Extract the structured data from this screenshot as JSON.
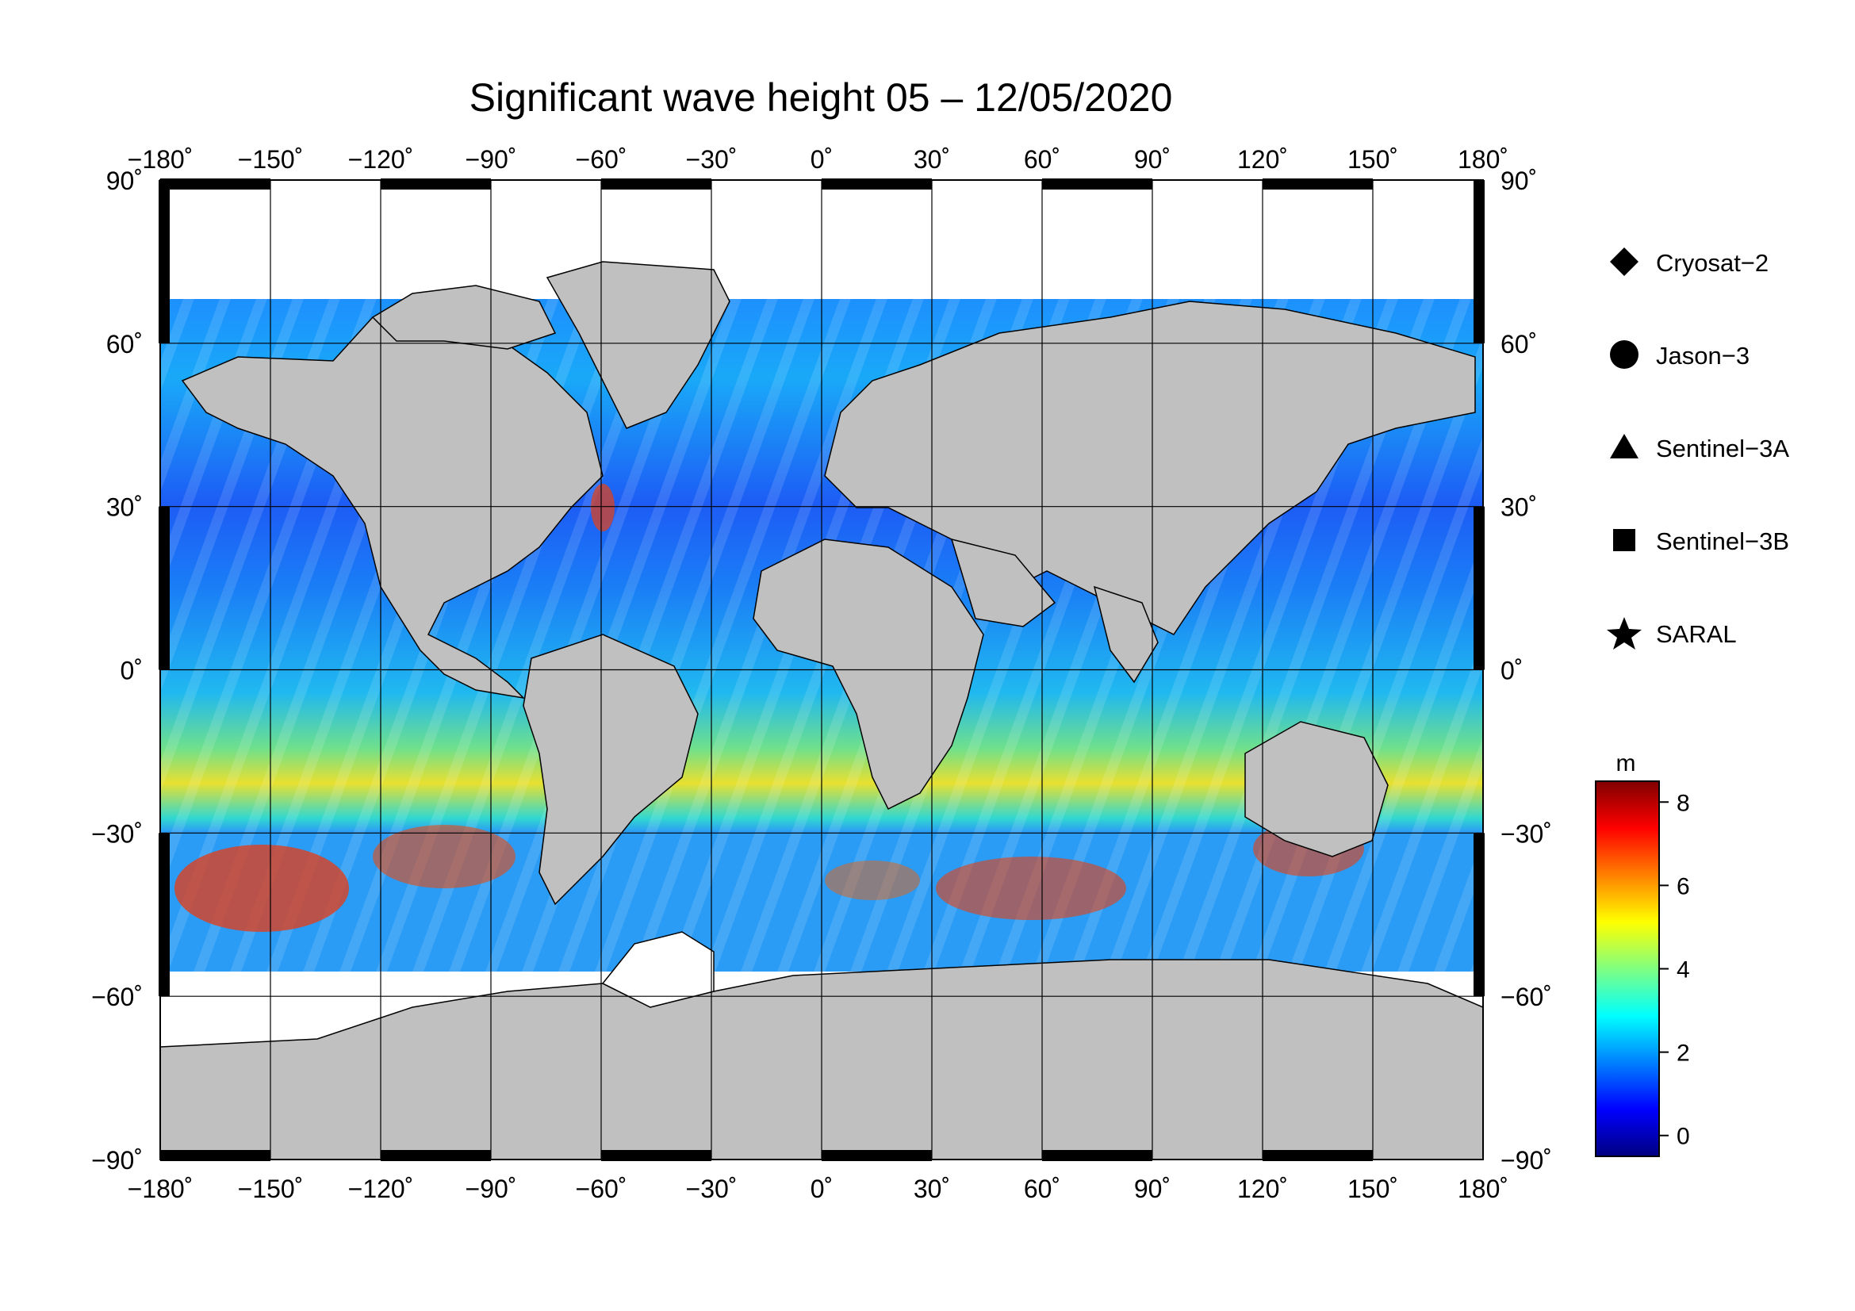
{
  "title": "Significant wave height 05 – 12/05/2020",
  "axes": {
    "lon_ticks": [
      "−180˚",
      "−150˚",
      "−120˚",
      "−90˚",
      "−60˚",
      "−30˚",
      "0˚",
      "30˚",
      "60˚",
      "90˚",
      "120˚",
      "150˚",
      "180˚"
    ],
    "lon_values": [
      -180,
      -150,
      -120,
      -90,
      -60,
      -30,
      0,
      30,
      60,
      90,
      120,
      150,
      180
    ],
    "lat_ticks": [
      "90˚",
      "60˚",
      "30˚",
      "0˚",
      "−30˚",
      "−60˚",
      "−90˚"
    ],
    "lat_values": [
      90,
      60,
      30,
      0,
      -30,
      -60,
      -90
    ],
    "lon_range": [
      -180,
      180
    ],
    "lat_range": [
      -90,
      90
    ],
    "grid": true
  },
  "legend": {
    "items": [
      {
        "label": "Cryosat−2",
        "symbol": "diamond"
      },
      {
        "label": "Jason−3",
        "symbol": "circle"
      },
      {
        "label": "Sentinel−3A",
        "symbol": "triangle"
      },
      {
        "label": "Sentinel−3B",
        "symbol": "square"
      },
      {
        "label": "SARAL",
        "symbol": "star"
      }
    ]
  },
  "colorbar": {
    "unit": "m",
    "tick_labels": [
      "8",
      "6",
      "4",
      "2",
      "0"
    ],
    "tick_values": [
      8,
      6,
      4,
      2,
      0
    ],
    "range": [
      -0.5,
      8.5
    ],
    "colors": [
      "#000080",
      "#0000ff",
      "#0080ff",
      "#00ffff",
      "#80ff80",
      "#ffff00",
      "#ff8000",
      "#ff0000",
      "#800000"
    ]
  },
  "map_colors": {
    "land": "#c0c0c0",
    "ice": "#ffffff",
    "low_wave": "#0a3ef0",
    "mid_wave": "#1fb4f5",
    "high_wave": "#e01010"
  }
}
